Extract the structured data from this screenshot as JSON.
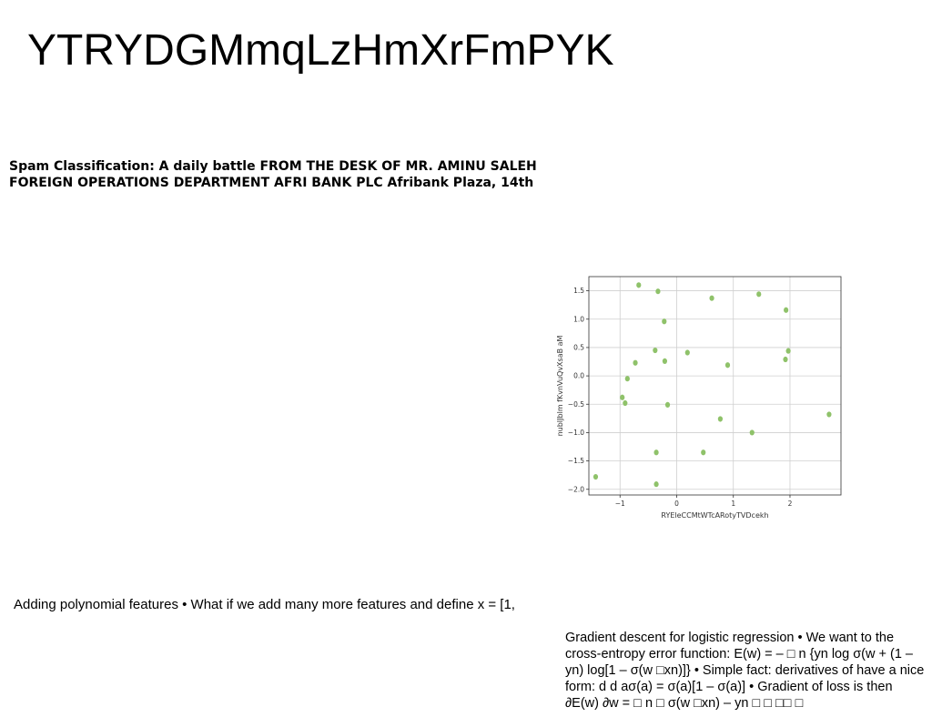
{
  "title": "YTRYDGMmqLzHmXrFmPYK",
  "spam_heading": "Spam Classification: A daily battle FROM THE DESK OF MR. AMINU SALEH FOREIGN OPERATIONS DEPARTMENT AFRI BANK PLC Afribank Plaza, 14th",
  "polynomial_text": "Adding polynomial features • What if we add many more features and define x = [1,",
  "gradient_text": "Gradient descent for logistic regression • We want to the cross-entropy error function: E(w) = – □ n {yn log σ(w + (1 – yn) log[1 – σ(w □xn)]} • Simple fact: derivatives of have a nice form: d d aσ(a) = σ(a)[1 – σ(a)] • Gradient of loss is then ∂E(w) ∂w = □ n □ σ(w □xn) – yn □ □ □□ □",
  "chart_data": {
    "type": "scatter",
    "xlabel": "RYEleCCMtWTcARotyTVDcekh",
    "ylabel": "nubIJblm fKvnVuQvXsaB aM",
    "xlim": [
      -1.55,
      2.9
    ],
    "ylim": [
      -2.1,
      1.75
    ],
    "x_ticks": [
      -1,
      0,
      1,
      2
    ],
    "y_ticks": [
      -2.0,
      -1.5,
      -1.0,
      -0.5,
      0.0,
      0.5,
      1.0,
      1.5
    ],
    "x_tick_labels": [
      "−1",
      "0",
      "1",
      "2"
    ],
    "y_tick_labels": [
      "−2.0",
      "−1.5",
      "−1.0",
      "−0.5",
      "0.0",
      "0.5",
      "1.0",
      "1.5"
    ],
    "grid": true,
    "point_color": "#8fc26a",
    "x": [
      -0.67,
      -0.33,
      0.62,
      1.45,
      1.93,
      -0.22,
      -0.38,
      -0.73,
      -0.21,
      0.19,
      0.9,
      1.92,
      1.97,
      -0.87,
      -0.96,
      -0.91,
      -0.16,
      0.77,
      1.33,
      2.69,
      -0.36,
      0.47,
      -1.43,
      -0.36
    ],
    "y": [
      1.6,
      1.49,
      1.37,
      1.44,
      1.16,
      0.96,
      0.45,
      0.23,
      0.26,
      0.41,
      0.19,
      0.29,
      0.44,
      -0.05,
      -0.38,
      -0.48,
      -0.51,
      -0.76,
      -1.0,
      -0.68,
      -1.35,
      -1.35,
      -1.78,
      -1.91
    ]
  }
}
